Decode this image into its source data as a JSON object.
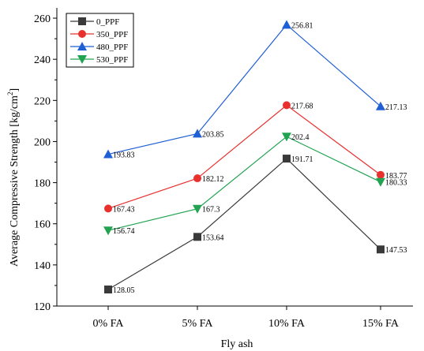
{
  "chart_data": {
    "type": "line",
    "xlabel": "Fly ash",
    "ylabel_main": "Average Compressive Strength [kg/cm",
    "ylabel_sup": "2",
    "ylabel_end": "]",
    "categories": [
      "0% FA",
      "5% FA",
      "10% FA",
      "15% FA"
    ],
    "ylim": [
      120,
      265
    ],
    "yticks": [
      120,
      140,
      160,
      180,
      200,
      220,
      240,
      260
    ],
    "legend_position": "top-left",
    "grid": false,
    "series": [
      {
        "name": "0_PPF",
        "color": "#3a3a3a",
        "marker": "square",
        "values": [
          128.05,
          153.64,
          191.71,
          147.53
        ],
        "labels": [
          "128.05",
          "153.64",
          "191.71",
          "147.53"
        ]
      },
      {
        "name": "350_PPF",
        "color": "#e8312f",
        "marker": "circle",
        "values": [
          167.43,
          182.12,
          217.68,
          183.77
        ],
        "labels": [
          "167.43",
          "182.12",
          "217.68",
          "183.77"
        ]
      },
      {
        "name": "480_PPF",
        "color": "#1f5fd6",
        "marker": "triangle-up",
        "values": [
          193.83,
          203.85,
          256.81,
          217.13
        ],
        "labels": [
          "193.83",
          "203.85",
          "256.81",
          "217.13"
        ]
      },
      {
        "name": "530_PPF",
        "color": "#22a352",
        "marker": "triangle-down",
        "values": [
          156.74,
          167.3,
          202.4,
          180.33
        ],
        "labels": [
          "156.74",
          "167.3",
          "202.4",
          "180.33"
        ]
      }
    ]
  }
}
